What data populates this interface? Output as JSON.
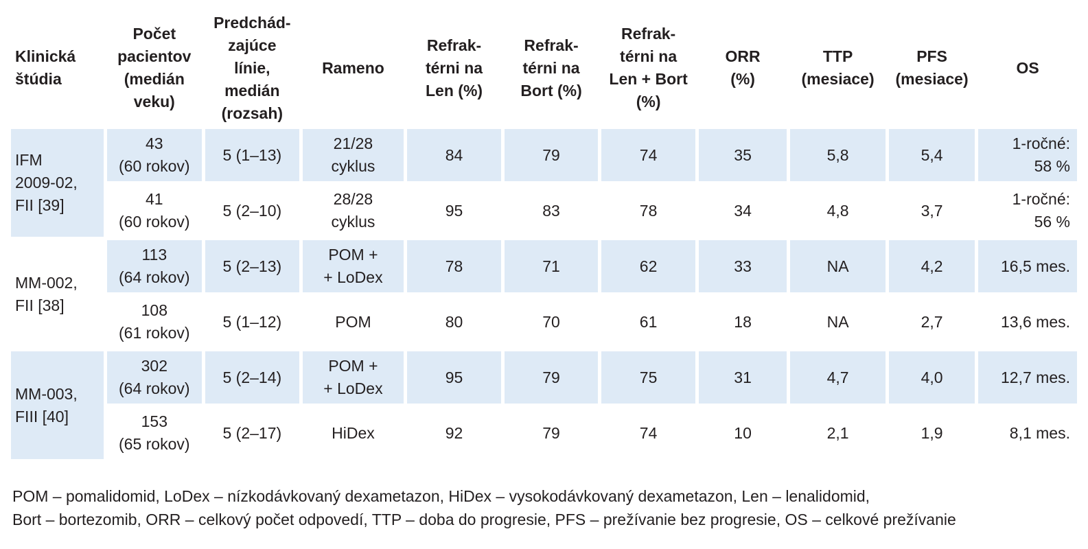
{
  "headers": {
    "study": [
      "Klinická",
      "štúdia"
    ],
    "patients": [
      "Počet",
      "pacientov",
      "(medián",
      "veku)"
    ],
    "prior_lines": [
      "Predchád-",
      "zajúce",
      "línie,",
      "medián",
      "(rozsah)"
    ],
    "arm": [
      "Rameno"
    ],
    "ref_len": [
      "Refrak-",
      "térni na",
      "Len (%)"
    ],
    "ref_bort": [
      "Refrak-",
      "térni na",
      "Bort (%)"
    ],
    "ref_len_bort": [
      "Refrak-",
      "térni na",
      "Len + Bort",
      "(%)"
    ],
    "orr": [
      "ORR",
      "(%)"
    ],
    "ttp": [
      "TTP",
      "(mesiace)"
    ],
    "pfs": [
      "PFS",
      "(mesiace)"
    ],
    "os": [
      "OS"
    ]
  },
  "studies": [
    {
      "name": [
        "IFM",
        "2009-02,",
        "FII [39]"
      ]
    },
    {
      "name": [
        "MM-002,",
        "FII [38]"
      ]
    },
    {
      "name": [
        "MM-003,",
        "FIII [40]"
      ]
    }
  ],
  "rows": [
    {
      "patients": [
        "43",
        "(60 rokov)"
      ],
      "prior_lines": "5 (1–13)",
      "arm": [
        "21/28",
        "cyklus"
      ],
      "ref_len": "84",
      "ref_bort": "79",
      "ref_len_bort": "74",
      "orr": "35",
      "ttp": "5,8",
      "pfs": "5,4",
      "os": [
        "1-ročné:",
        "58 %"
      ]
    },
    {
      "patients": [
        "41",
        "(60 rokov)"
      ],
      "prior_lines": "5 (2–10)",
      "arm": [
        "28/28",
        "cyklus"
      ],
      "ref_len": "95",
      "ref_bort": "83",
      "ref_len_bort": "78",
      "orr": "34",
      "ttp": "4,8",
      "pfs": "3,7",
      "os": [
        "1-ročné:",
        "56 %"
      ]
    },
    {
      "patients": [
        "113",
        "(64 rokov)"
      ],
      "prior_lines": "5 (2–13)",
      "arm": [
        "POM +",
        "+ LoDex"
      ],
      "ref_len": "78",
      "ref_bort": "71",
      "ref_len_bort": "62",
      "orr": "33",
      "ttp": "NA",
      "pfs": "4,2",
      "os": [
        "16,5 mes."
      ]
    },
    {
      "patients": [
        "108",
        "(61 rokov)"
      ],
      "prior_lines": "5 (1–12)",
      "arm": [
        "POM"
      ],
      "ref_len": "80",
      "ref_bort": "70",
      "ref_len_bort": "61",
      "orr": "18",
      "ttp": "NA",
      "pfs": "2,7",
      "os": [
        "13,6 mes."
      ]
    },
    {
      "patients": [
        "302",
        "(64 rokov)"
      ],
      "prior_lines": "5 (2–14)",
      "arm": [
        "POM +",
        "+ LoDex"
      ],
      "ref_len": "95",
      "ref_bort": "79",
      "ref_len_bort": "75",
      "orr": "31",
      "ttp": "4,7",
      "pfs": "4,0",
      "os": [
        "12,7 mes."
      ]
    },
    {
      "patients": [
        "153",
        "(65 rokov)"
      ],
      "prior_lines": "5 (2–17)",
      "arm": [
        "HiDex"
      ],
      "ref_len": "92",
      "ref_bort": "79",
      "ref_len_bort": "74",
      "orr": "10",
      "ttp": "2,1",
      "pfs": "1,9",
      "os": [
        "8,1 mes."
      ]
    }
  ],
  "footnote": [
    "POM – pomalidomid, LoDex – nízkodávkovaný dexametazon, HiDex – vysokodávkovaný dexametazon, Len – lenalidomid,",
    "Bort – bortezomib, ORR – celkový počet odpovedí, TTP – doba do progresie, PFS – prežívanie bez progresie, OS – celkové prežívanie"
  ]
}
